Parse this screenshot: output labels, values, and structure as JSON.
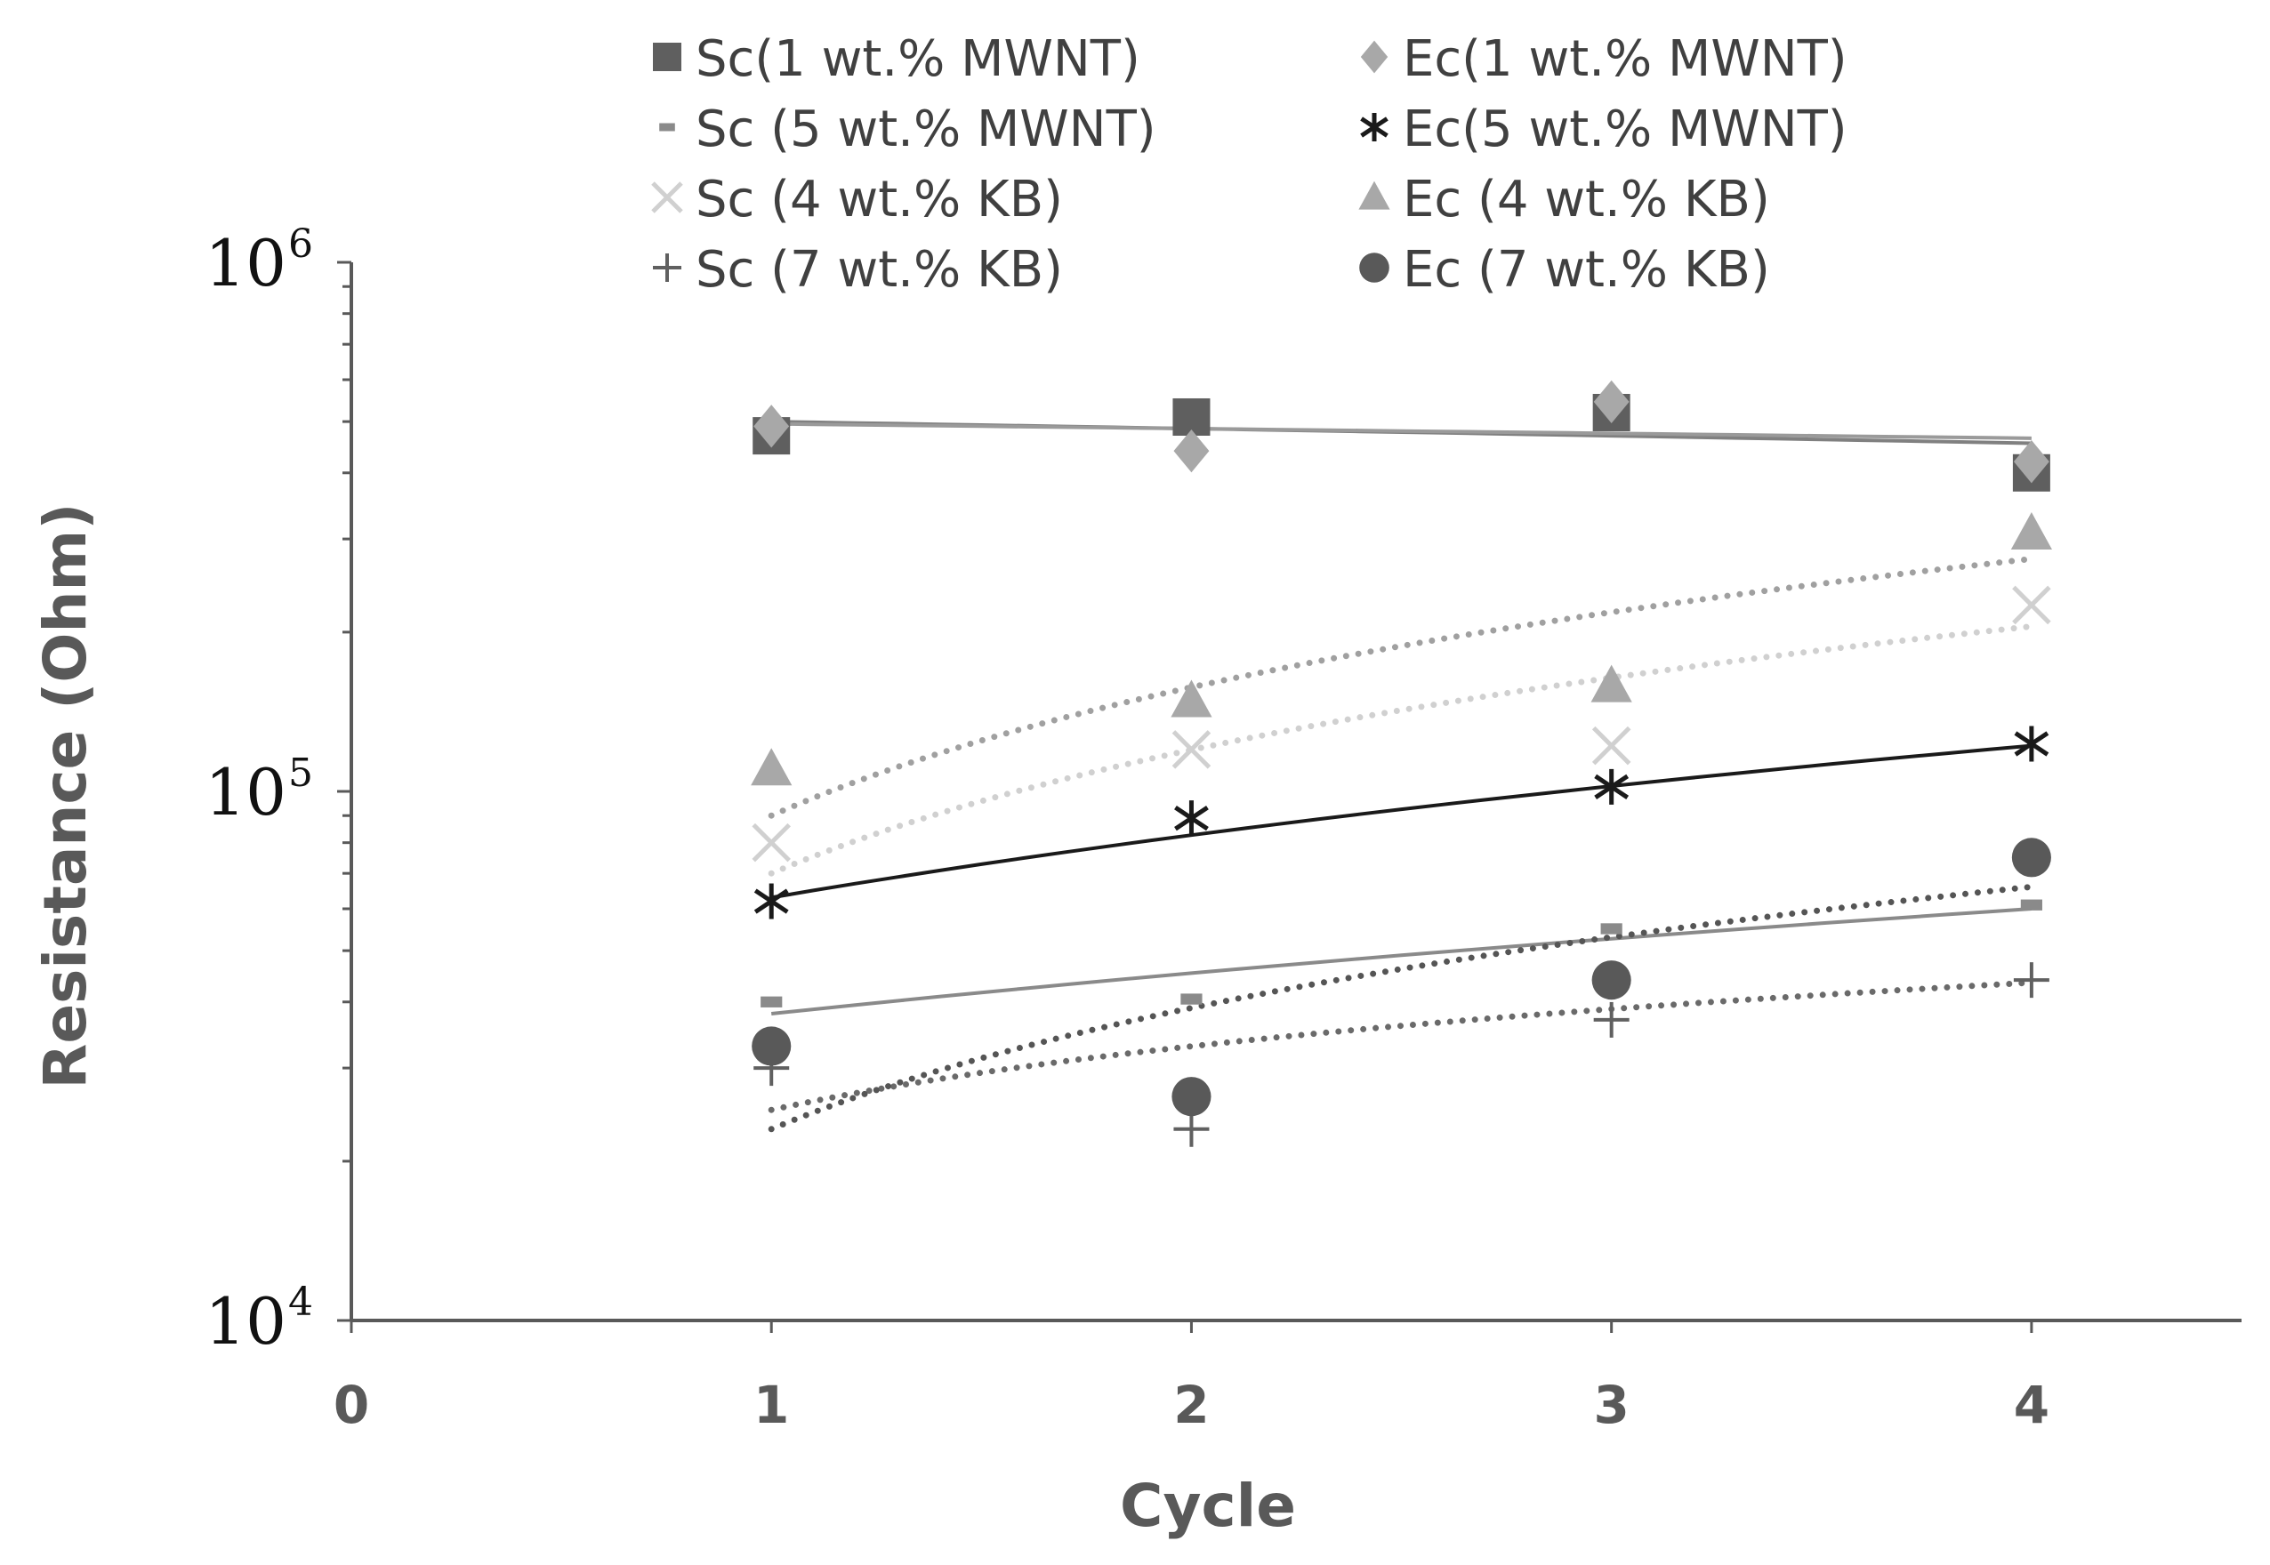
{
  "chart_data": {
    "type": "scatter",
    "title": "",
    "xlabel": "Cycle",
    "ylabel": "Resistance (Ohm)",
    "xlim": [
      0,
      4.5
    ],
    "ylim": [
      10000,
      1000000
    ],
    "yscale": "log",
    "x_ticks": [
      "0",
      "1",
      "2",
      "3",
      "4"
    ],
    "y_ticks": [
      {
        "base": "10",
        "exp": "4"
      },
      {
        "base": "10",
        "exp": "5"
      },
      {
        "base": "10",
        "exp": "6"
      }
    ],
    "legend_position": "top",
    "series": [
      {
        "name": "Sc(1 wt.% MWNT)",
        "marker": "square",
        "color": "#5f5f5f",
        "x": [
          1,
          2,
          3,
          4
        ],
        "y": [
          470000,
          510000,
          520000,
          400000
        ],
        "trend": {
          "type": "linear",
          "style": "solid",
          "color": "#808080",
          "width": 4,
          "y": [
            500000,
            485000,
            470000,
            455000
          ]
        }
      },
      {
        "name": "Ec(1 wt.% MWNT)",
        "marker": "diamond",
        "color": "#a8a8a8",
        "x": [
          1,
          2,
          3,
          4
        ],
        "y": [
          490000,
          440000,
          545000,
          420000
        ],
        "trend": {
          "type": "linear",
          "style": "solid",
          "color": "#9a9a9a",
          "width": 4,
          "y": [
            495000,
            485000,
            475000,
            465000
          ]
        }
      },
      {
        "name": "Sc (5 wt.% MWNT)",
        "marker": "dash",
        "color": "#8a8a8a",
        "x": [
          1,
          2,
          3,
          4
        ],
        "y": [
          40000,
          40500,
          55000,
          61000
        ],
        "trend": {
          "type": "linear",
          "style": "solid",
          "color": "#8a8a8a",
          "width": 4,
          "y": [
            38000,
            45000,
            52000,
            60000
          ]
        }
      },
      {
        "name": "Ec(5 wt.% MWNT)",
        "marker": "asterisk",
        "color": "#1a1a1a",
        "x": [
          1,
          2,
          3,
          4
        ],
        "y": [
          62000,
          89000,
          102000,
          123000
        ],
        "trend": {
          "type": "linear",
          "style": "solid",
          "color": "#1a1a1a",
          "width": 4,
          "y": [
            63000,
            84000,
            103000,
            122000
          ]
        }
      },
      {
        "name": "Sc (4 wt.% KB)",
        "marker": "x",
        "color": "#d0d0d0",
        "x": [
          1,
          2,
          3,
          4
        ],
        "y": [
          80000,
          120000,
          122000,
          225000
        ],
        "trend": {
          "type": "power",
          "style": "dotted",
          "color": "#d0d0d0",
          "width": 7,
          "y": [
            70000,
            115000,
            160000,
            205000
          ]
        }
      },
      {
        "name": "Ec (4 wt.% KB)",
        "marker": "triangle",
        "color": "#a8a8a8",
        "x": [
          1,
          2,
          3,
          4
        ],
        "y": [
          110000,
          148000,
          158000,
          307000
        ],
        "trend": {
          "type": "power",
          "style": "dotted",
          "color": "#a0a0a0",
          "width": 7,
          "y": [
            90000,
            150000,
            210000,
            275000
          ]
        }
      },
      {
        "name": "Sc (7 wt.% KB)",
        "marker": "plus",
        "color": "#606060",
        "x": [
          1,
          2,
          3,
          4
        ],
        "y": [
          30000,
          23000,
          37000,
          44000
        ],
        "trend": {
          "type": "power",
          "style": "dotted",
          "color": "#6a6a6a",
          "width": 7,
          "y": [
            25000,
            30500,
            36500,
            43500
          ]
        }
      },
      {
        "name": "Ec (7 wt.% KB)",
        "marker": "circle",
        "color": "#595959",
        "x": [
          1,
          2,
          3,
          4
        ],
        "y": [
          33000,
          26500,
          44000,
          75000
        ],
        "trend": {
          "type": "power",
          "style": "dotted",
          "color": "#555555",
          "width": 7,
          "y": [
            23000,
            38000,
            52000,
            66000
          ]
        }
      }
    ]
  }
}
